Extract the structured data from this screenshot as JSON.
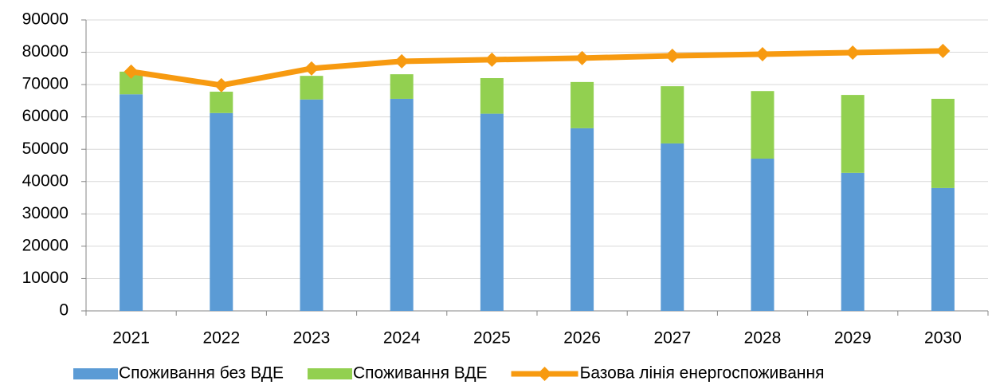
{
  "chart_data": {
    "type": "bar",
    "stacked": true,
    "categories": [
      "2021",
      "2022",
      "2023",
      "2024",
      "2025",
      "2026",
      "2027",
      "2028",
      "2029",
      "2030"
    ],
    "series": [
      {
        "name": "Споживання без ВДЕ",
        "type": "bar",
        "color": "#5b9bd5",
        "values": [
          67000,
          61200,
          65400,
          65600,
          61000,
          56500,
          51800,
          47100,
          42700,
          38000
        ]
      },
      {
        "name": "Споживання ВДЕ",
        "type": "bar",
        "color": "#92d050",
        "values": [
          7000,
          6600,
          7300,
          7600,
          11000,
          14300,
          17700,
          20900,
          24100,
          27600
        ]
      },
      {
        "name": "Базова лінія енергоспоживання",
        "type": "line",
        "color": "#f79a10",
        "values": [
          74000,
          69800,
          75000,
          77200,
          77700,
          78200,
          78900,
          79400,
          79900,
          80400
        ]
      }
    ],
    "ylim": [
      0,
      90000
    ],
    "yticks": [
      0,
      10000,
      20000,
      30000,
      40000,
      50000,
      60000,
      70000,
      80000,
      90000
    ],
    "grid": true,
    "legend": "bottom"
  }
}
